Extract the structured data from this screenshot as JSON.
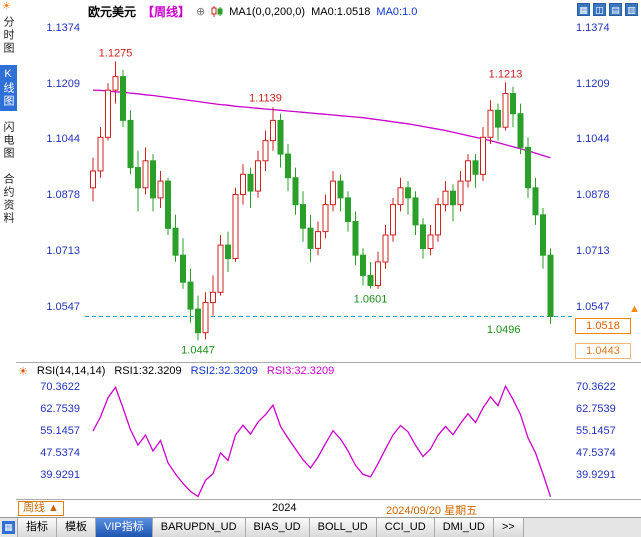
{
  "app": {
    "corner_icon": "☀",
    "title": {
      "symbol": "欧元美元",
      "period": "【周线】",
      "plus_icon": "⊕"
    },
    "ma_header": {
      "ma1": "MA1(0,0,200,0)",
      "ma0_a": "MA0:1.0518",
      "ma0_b": "MA0:1.0"
    },
    "layout_icons": [
      {
        "name": "layout-grid-icon",
        "glyph": "▦"
      },
      {
        "name": "layout-vertical-split-icon",
        "glyph": "◫"
      },
      {
        "name": "layout-horizontal-split-icon",
        "glyph": "▤"
      },
      {
        "name": "layout-right-panel-icon",
        "glyph": "▥"
      }
    ]
  },
  "sidebar": {
    "items": [
      {
        "label": "分时图",
        "selected": false
      },
      {
        "label": "K线图",
        "selected": true
      },
      {
        "label": "闪电图",
        "selected": false
      },
      {
        "label": "合约资料",
        "selected": false
      }
    ]
  },
  "price_tags": {
    "last": "1.0518",
    "low": "1.0443",
    "arrow": "▲"
  },
  "rsi_header": {
    "icon": "☀",
    "name": "RSI(14,14,14)",
    "r1": "RSI1:32.3209",
    "r2": "RSI2:32.3209",
    "r3": "RSI3:32.3209"
  },
  "xaxis": {
    "period_box": "周线",
    "period_arrow": "▲",
    "year": "2024",
    "date": "2024/09/20 星期五"
  },
  "toolbar": {
    "panel_icon": "▦",
    "tabs": [
      {
        "label": "指标",
        "selected": false
      },
      {
        "label": "模板",
        "selected": false
      },
      {
        "label": "VIP指标",
        "selected": true
      },
      {
        "label": "BARUPDN_UD",
        "selected": false
      },
      {
        "label": "BIAS_UD",
        "selected": false
      },
      {
        "label": "BOLL_UD",
        "selected": false
      },
      {
        "label": "CCI_UD",
        "selected": false
      },
      {
        "label": "DMI_UD",
        "selected": false
      },
      {
        "label": ">>",
        "selected": false
      }
    ]
  },
  "chart_data": [
    {
      "type": "candlestick",
      "title": "欧元美元 周线 (EUR/USD weekly)",
      "columns": [
        "open",
        "high",
        "low",
        "close"
      ],
      "y_axis_ticks": [
        1.1374,
        1.1209,
        1.1044,
        1.0878,
        1.0713,
        1.0547
      ],
      "ylim": [
        1.0383,
        1.1398
      ],
      "x_tick_labels": [
        "2024"
      ],
      "up_color": "#cc2222",
      "down_color": "#2aa02a",
      "ma_color": "#cc00cc",
      "dashed_level_color": "#22a0c8",
      "dashed_level": 1.0518,
      "last_price": 1.0518,
      "low_tag": 1.0443,
      "candles": [
        [
          1.09,
          1.099,
          1.086,
          1.095
        ],
        [
          1.095,
          1.108,
          1.093,
          1.105
        ],
        [
          1.105,
          1.121,
          1.104,
          1.119
        ],
        [
          1.119,
          1.1275,
          1.115,
          1.123
        ],
        [
          1.123,
          1.125,
          1.108,
          1.11
        ],
        [
          1.11,
          1.113,
          1.094,
          1.096
        ],
        [
          1.096,
          1.101,
          1.083,
          1.09
        ],
        [
          1.09,
          1.102,
          1.088,
          1.098
        ],
        [
          1.098,
          1.1,
          1.083,
          1.087
        ],
        [
          1.087,
          1.095,
          1.084,
          1.092
        ],
        [
          1.092,
          1.093,
          1.076,
          1.078
        ],
        [
          1.078,
          1.082,
          1.068,
          1.07
        ],
        [
          1.07,
          1.075,
          1.06,
          1.062
        ],
        [
          1.062,
          1.066,
          1.05,
          1.054
        ],
        [
          1.054,
          1.058,
          1.0447,
          1.047
        ],
        [
          1.047,
          1.059,
          1.045,
          1.056
        ],
        [
          1.056,
          1.064,
          1.052,
          1.059
        ],
        [
          1.059,
          1.076,
          1.058,
          1.073
        ],
        [
          1.073,
          1.077,
          1.065,
          1.069
        ],
        [
          1.069,
          1.09,
          1.068,
          1.088
        ],
        [
          1.088,
          1.097,
          1.085,
          1.094
        ],
        [
          1.094,
          1.096,
          1.084,
          1.089
        ],
        [
          1.089,
          1.101,
          1.087,
          1.098
        ],
        [
          1.098,
          1.107,
          1.095,
          1.104
        ],
        [
          1.104,
          1.1139,
          1.101,
          1.11
        ],
        [
          1.11,
          1.112,
          1.096,
          1.1
        ],
        [
          1.1,
          1.103,
          1.089,
          1.093
        ],
        [
          1.093,
          1.096,
          1.082,
          1.085
        ],
        [
          1.085,
          1.089,
          1.074,
          1.078
        ],
        [
          1.078,
          1.082,
          1.068,
          1.072
        ],
        [
          1.072,
          1.08,
          1.07,
          1.077
        ],
        [
          1.077,
          1.088,
          1.075,
          1.085
        ],
        [
          1.085,
          1.095,
          1.083,
          1.092
        ],
        [
          1.092,
          1.094,
          1.083,
          1.087
        ],
        [
          1.087,
          1.089,
          1.077,
          1.08
        ],
        [
          1.08,
          1.083,
          1.067,
          1.07
        ],
        [
          1.07,
          1.072,
          1.061,
          1.064
        ],
        [
          1.064,
          1.068,
          1.0601,
          1.061
        ],
        [
          1.061,
          1.071,
          1.06,
          1.068
        ],
        [
          1.068,
          1.079,
          1.066,
          1.076
        ],
        [
          1.076,
          1.087,
          1.074,
          1.085
        ],
        [
          1.085,
          1.093,
          1.083,
          1.09
        ],
        [
          1.09,
          1.092,
          1.082,
          1.087
        ],
        [
          1.087,
          1.089,
          1.076,
          1.079
        ],
        [
          1.079,
          1.081,
          1.069,
          1.072
        ],
        [
          1.072,
          1.079,
          1.07,
          1.076
        ],
        [
          1.076,
          1.087,
          1.074,
          1.085
        ],
        [
          1.085,
          1.092,
          1.083,
          1.089
        ],
        [
          1.089,
          1.091,
          1.08,
          1.085
        ],
        [
          1.085,
          1.095,
          1.083,
          1.092
        ],
        [
          1.092,
          1.1,
          1.09,
          1.098
        ],
        [
          1.098,
          1.1,
          1.09,
          1.094
        ],
        [
          1.094,
          1.108,
          1.092,
          1.105
        ],
        [
          1.105,
          1.116,
          1.103,
          1.113
        ],
        [
          1.113,
          1.115,
          1.104,
          1.108
        ],
        [
          1.108,
          1.1213,
          1.107,
          1.118
        ],
        [
          1.118,
          1.12,
          1.108,
          1.112
        ],
        [
          1.112,
          1.115,
          1.1,
          1.102
        ],
        [
          1.102,
          1.105,
          1.087,
          1.09
        ],
        [
          1.09,
          1.093,
          1.079,
          1.082
        ],
        [
          1.082,
          1.084,
          1.066,
          1.07
        ],
        [
          1.07,
          1.072,
          1.0496,
          1.0518
        ]
      ],
      "ma_series": {
        "name": "MA(200)",
        "values": [
          1.119,
          1.1189,
          1.1187,
          1.1185,
          1.1183,
          1.1181,
          1.1179,
          1.1176,
          1.1174,
          1.1171,
          1.1168,
          1.1165,
          1.1162,
          1.1159,
          1.1156,
          1.1153,
          1.115,
          1.1147,
          1.1145,
          1.1142,
          1.114,
          1.1138,
          1.1136,
          1.1134,
          1.1132,
          1.113,
          1.1128,
          1.1126,
          1.1124,
          1.1122,
          1.112,
          1.1118,
          1.1116,
          1.1114,
          1.1112,
          1.111,
          1.1108,
          1.1105,
          1.1102,
          1.1099,
          1.1096,
          1.1093,
          1.109,
          1.1086,
          1.1082,
          1.1078,
          1.1074,
          1.107,
          1.1065,
          1.106,
          1.1055,
          1.105,
          1.1045,
          1.104,
          1.1034,
          1.1028,
          1.1022,
          1.1016,
          1.101,
          1.1003,
          1.0996,
          1.0989
        ]
      },
      "annotations": [
        {
          "label": "1.1275",
          "i": 3,
          "price": 1.1275,
          "dy": -5,
          "color": "#cc2222"
        },
        {
          "label": "1.1139",
          "i": 23,
          "price": 1.1139,
          "dy": -6,
          "color": "#cc2222"
        },
        {
          "label": "1.1213",
          "i": 55,
          "price": 1.1213,
          "dy": -5,
          "color": "#cc2222"
        },
        {
          "label": "1.0601",
          "i": 37,
          "price": 1.0601,
          "dy": 14,
          "color": "#1e8f1e"
        },
        {
          "label": "1.0447",
          "i": 14,
          "price": 1.0447,
          "dy": 13,
          "color": "#1e8f1e"
        },
        {
          "label": "1.0496",
          "i": 61,
          "price": 1.0496,
          "dy": 9,
          "dx": -30,
          "anchor": "end",
          "color": "#1e8f1e"
        }
      ]
    },
    {
      "type": "line",
      "title": "RSI(14,14,14)",
      "y_axis_ticks": [
        70.3622,
        62.7539,
        55.1457,
        47.5374,
        39.9291
      ],
      "ylim": [
        31.5,
        72.6
      ],
      "line_color": "#cc00cc",
      "series": [
        {
          "name": "RSI1",
          "values": [
            55.2,
            60.1,
            66.8,
            70.4,
            63.2,
            55.6,
            50.3,
            53.8,
            48.2,
            51.9,
            44.1,
            40.2,
            36.9,
            34.1,
            32.4,
            38.0,
            40.3,
            47.6,
            44.9,
            53.8,
            57.2,
            54.1,
            58.3,
            60.9,
            64.2,
            56.8,
            52.7,
            48.9,
            45.2,
            42.3,
            46.1,
            50.8,
            55.3,
            52.4,
            48.3,
            43.2,
            40.1,
            39.2,
            43.8,
            48.9,
            53.8,
            57.1,
            54.9,
            50.2,
            46.3,
            48.9,
            53.7,
            56.8,
            53.9,
            57.8,
            61.2,
            58.1,
            63.2,
            67.1,
            64.0,
            70.8,
            66.2,
            60.9,
            52.8,
            47.6,
            40.2,
            32.3
          ]
        }
      ]
    }
  ]
}
